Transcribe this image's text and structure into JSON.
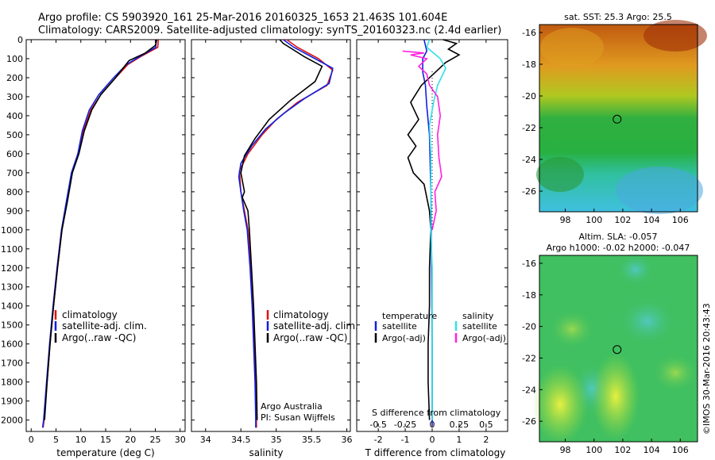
{
  "header": {
    "line1": "Argo profile: CS 5903920_161 25-Mar-2016 20160325_1653 21.463S 101.604E",
    "line2": "Climatology: CARS2009. Satellite-adjusted climatology: synTS_20160323.nc (2.4d earlier)"
  },
  "colors": {
    "clim": "#e01010",
    "sat": "#1020e0",
    "argo": "#000000",
    "sal_sat": "#30e0e8",
    "sal_argo": "#ff20e0"
  },
  "chart_data": [
    {
      "type": "line",
      "id": "temperature",
      "xlabel": "temperature (deg C)",
      "xlim": [
        -1,
        31
      ],
      "ylim": [
        2060,
        0
      ],
      "xticks": [
        0,
        5,
        10,
        15,
        20,
        25,
        30
      ],
      "yticks": [
        0,
        100,
        200,
        300,
        400,
        500,
        600,
        700,
        800,
        900,
        1000,
        1100,
        1200,
        1300,
        1400,
        1500,
        1600,
        1700,
        1800,
        1900,
        2000
      ],
      "legend": [
        "climatology",
        "satellite-adj. clim.",
        "Argo(..raw -QC)"
      ],
      "series": [
        {
          "name": "climatology",
          "color": "clim",
          "points": [
            [
              25.6,
              0
            ],
            [
              25.5,
              40
            ],
            [
              22,
              90
            ],
            [
              19.5,
              130
            ],
            [
              17,
              200
            ],
            [
              14,
              290
            ],
            [
              12,
              370
            ],
            [
              10.5,
              480
            ],
            [
              9.5,
              600
            ],
            [
              8.2,
              700
            ],
            [
              7.2,
              850
            ],
            [
              6.2,
              1000
            ],
            [
              5.3,
              1200
            ],
            [
              4.5,
              1400
            ],
            [
              3.8,
              1600
            ],
            [
              3.2,
              1800
            ],
            [
              2.6,
              2000
            ],
            [
              2.4,
              2040
            ]
          ]
        },
        {
          "name": "satellite-adj. clim.",
          "color": "sat",
          "points": [
            [
              25.2,
              0
            ],
            [
              25.1,
              40
            ],
            [
              21.8,
              90
            ],
            [
              19.2,
              130
            ],
            [
              16.6,
              200
            ],
            [
              13.6,
              290
            ],
            [
              11.7,
              370
            ],
            [
              10.3,
              480
            ],
            [
              9.4,
              600
            ],
            [
              8.1,
              700
            ],
            [
              7.1,
              850
            ],
            [
              6.1,
              1000
            ],
            [
              5.2,
              1200
            ],
            [
              4.4,
              1400
            ],
            [
              3.7,
              1600
            ],
            [
              3.1,
              1800
            ],
            [
              2.5,
              2000
            ],
            [
              2.3,
              2040
            ]
          ]
        },
        {
          "name": "Argo(..raw -QC)",
          "color": "argo",
          "points": [
            [
              25.3,
              0
            ],
            [
              25,
              30
            ],
            [
              23,
              70
            ],
            [
              19.7,
              110
            ],
            [
              17,
              200
            ],
            [
              14,
              290
            ],
            [
              12.2,
              370
            ],
            [
              10.7,
              480
            ],
            [
              9.6,
              600
            ],
            [
              8.3,
              700
            ],
            [
              7.3,
              850
            ],
            [
              6.2,
              1000
            ],
            [
              5.3,
              1200
            ],
            [
              4.5,
              1400
            ],
            [
              3.8,
              1600
            ],
            [
              3.2,
              1800
            ],
            [
              2.7,
              2000
            ]
          ]
        }
      ]
    },
    {
      "type": "line",
      "id": "salinity",
      "xlabel": "salinity",
      "xlim": [
        33.8,
        36.05
      ],
      "ylim": [
        2060,
        0
      ],
      "xticks": [
        34,
        34.5,
        35,
        35.5,
        36
      ],
      "legend": [
        "climatology",
        "satellite-adj. clim.",
        "Argo(..raw -QC)"
      ],
      "annotation": [
        "Argo Australia",
        "PI: Susan Wijffels"
      ],
      "series": [
        {
          "name": "climatology",
          "color": "clim",
          "points": [
            [
              35.15,
              0
            ],
            [
              35.3,
              40
            ],
            [
              35.6,
              100
            ],
            [
              35.8,
              160
            ],
            [
              35.72,
              240
            ],
            [
              35.3,
              330
            ],
            [
              35.0,
              420
            ],
            [
              34.8,
              500
            ],
            [
              34.6,
              600
            ],
            [
              34.48,
              690
            ],
            [
              34.5,
              800
            ],
            [
              34.55,
              900
            ],
            [
              34.6,
              1000
            ],
            [
              34.64,
              1200
            ],
            [
              34.67,
              1400
            ],
            [
              34.69,
              1600
            ],
            [
              34.71,
              1800
            ],
            [
              34.72,
              2000
            ],
            [
              34.72,
              2040
            ]
          ]
        },
        {
          "name": "satellite-adj. clim.",
          "color": "sat",
          "points": [
            [
              35.1,
              0
            ],
            [
              35.25,
              40
            ],
            [
              35.55,
              100
            ],
            [
              35.8,
              150
            ],
            [
              35.75,
              230
            ],
            [
              35.4,
              310
            ],
            [
              35.1,
              390
            ],
            [
              34.85,
              470
            ],
            [
              34.65,
              560
            ],
            [
              34.5,
              650
            ],
            [
              34.47,
              720
            ],
            [
              34.5,
              800
            ],
            [
              34.54,
              900
            ],
            [
              34.59,
              1000
            ],
            [
              34.63,
              1200
            ],
            [
              34.66,
              1400
            ],
            [
              34.68,
              1600
            ],
            [
              34.7,
              1800
            ],
            [
              34.71,
              2000
            ],
            [
              34.71,
              2040
            ]
          ]
        },
        {
          "name": "Argo(..raw -QC)",
          "color": "argo",
          "points": [
            [
              35.05,
              0
            ],
            [
              35.1,
              20
            ],
            [
              35.4,
              90
            ],
            [
              35.65,
              140
            ],
            [
              35.55,
              220
            ],
            [
              35.2,
              320
            ],
            [
              34.9,
              420
            ],
            [
              34.7,
              520
            ],
            [
              34.55,
              610
            ],
            [
              34.5,
              700
            ],
            [
              34.55,
              800
            ],
            [
              34.52,
              830
            ],
            [
              34.6,
              900
            ],
            [
              34.62,
              1000
            ],
            [
              34.65,
              1200
            ],
            [
              34.68,
              1400
            ],
            [
              34.7,
              1600
            ],
            [
              34.72,
              1800
            ],
            [
              34.73,
              2000
            ]
          ]
        }
      ]
    },
    {
      "type": "line",
      "id": "difference",
      "xlabel": "T difference from climatology",
      "xlabel_top": "S difference from climatology",
      "xlim": [
        -2.8,
        2.8
      ],
      "ylim": [
        2060,
        0
      ],
      "xticks_bottom": [
        -2,
        -1,
        0,
        1,
        2
      ],
      "xticks_top": [
        -0.5,
        -0.25,
        0,
        0.25,
        0.5
      ],
      "xticks_top_labels": [
        "-0.5",
        "-0.25",
        "0",
        "0.25",
        "0.5"
      ],
      "legend_left_title": "temperature",
      "legend_right_title": "salinity",
      "legend_left": [
        "satellite",
        "Argo(-adj)"
      ],
      "legend_right": [
        "satellite",
        "Argo(-adj)"
      ],
      "series": [
        {
          "name": "satellite",
          "color": "sat",
          "points": [
            [
              -0.3,
              0
            ],
            [
              -0.2,
              60
            ],
            [
              -0.35,
              100
            ],
            [
              -0.35,
              170
            ],
            [
              -0.25,
              240
            ],
            [
              -0.2,
              350
            ],
            [
              -0.1,
              500
            ],
            [
              -0.05,
              800
            ],
            [
              -0.02,
              1200
            ],
            [
              0,
              1600
            ],
            [
              0,
              2030
            ]
          ]
        },
        {
          "name": "Argo(-adj)",
          "color": "argo",
          "points": [
            [
              0.4,
              0
            ],
            [
              0.9,
              20
            ],
            [
              0.6,
              50
            ],
            [
              1.0,
              80
            ],
            [
              0.5,
              120
            ],
            [
              0.2,
              160
            ],
            [
              -0.4,
              240
            ],
            [
              -0.8,
              330
            ],
            [
              -0.5,
              420
            ],
            [
              -0.9,
              500
            ],
            [
              -0.6,
              560
            ],
            [
              -0.9,
              620
            ],
            [
              -0.7,
              700
            ],
            [
              -0.3,
              760
            ],
            [
              -0.2,
              830
            ],
            [
              -0.1,
              900
            ],
            [
              -0.05,
              1000
            ],
            [
              -0.1,
              1200
            ],
            [
              -0.1,
              1400
            ],
            [
              -0.15,
              1600
            ],
            [
              -0.15,
              1800
            ],
            [
              -0.1,
              2000
            ]
          ]
        },
        {
          "name": "satellite",
          "color": "sal_sat",
          "points": [
            [
              -0.1,
              0
            ],
            [
              -0.2,
              40
            ],
            [
              0.3,
              100
            ],
            [
              0.5,
              150
            ],
            [
              0.2,
              240
            ],
            [
              0.05,
              330
            ],
            [
              -0.1,
              450
            ],
            [
              -0.05,
              600
            ],
            [
              -0.05,
              800
            ],
            [
              -0.05,
              1000
            ],
            [
              0,
              1200
            ],
            [
              0,
              1400
            ],
            [
              0,
              1600
            ],
            [
              0,
              1800
            ],
            [
              0,
              2000
            ]
          ]
        },
        {
          "name": "Argo(-adj)",
          "color": "sal_argo",
          "points": [
            [
              -1.1,
              60
            ],
            [
              -0.3,
              70
            ],
            [
              -0.8,
              80
            ],
            [
              -0.2,
              100
            ],
            [
              -0.5,
              140
            ],
            [
              -0.2,
              180
            ],
            [
              -0.1,
              240
            ],
            [
              0.2,
              300
            ],
            [
              0.3,
              400
            ],
            [
              0.2,
              500
            ],
            [
              0.25,
              620
            ],
            [
              0.35,
              720
            ],
            [
              0.1,
              800
            ],
            [
              0.15,
              900
            ],
            [
              0.0,
              1000
            ]
          ]
        }
      ]
    },
    {
      "type": "heatmap",
      "id": "sst_map",
      "title": "sat. SST: 25.3 Argo: 25.5",
      "xlim": [
        96.2,
        107.2
      ],
      "ylim": [
        -27.3,
        -15.5
      ],
      "xticks": [
        98,
        100,
        102,
        104,
        106
      ],
      "yticks": [
        -16,
        -18,
        -20,
        -22,
        -24,
        -26
      ],
      "marker": [
        101.604,
        -21.463
      ]
    },
    {
      "type": "heatmap",
      "id": "sla_map",
      "title_line1": "Altim. SLA: -0.057",
      "title_line2": "Argo h1000: -0.02 h2000: -0.047",
      "xlim": [
        96.2,
        107.2
      ],
      "ylim": [
        -27.3,
        -15.5
      ],
      "xticks": [
        98,
        100,
        102,
        104,
        106
      ],
      "yticks": [
        -16,
        -18,
        -20,
        -22,
        -24,
        -26
      ],
      "marker": [
        101.604,
        -21.463
      ]
    }
  ],
  "footer": {
    "stamp": "©IMOS 30-Mar-2016 20:43:43"
  }
}
